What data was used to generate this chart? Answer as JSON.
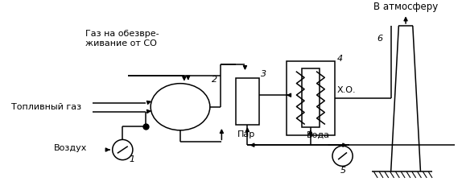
{
  "bg_color": "#ffffff",
  "line_color": "#000000",
  "labels": {
    "gaz_title": "Газ на обезвре-\nживание от СО",
    "fuel_gas": "Топливный газ",
    "air": "Воздух",
    "steam": "Пар",
    "water": "Вода",
    "xo": "Х.О.",
    "atmosphere": "В атмосферу",
    "num1": "1",
    "num2": "2",
    "num3": "3",
    "num4": "4",
    "num5": "5",
    "num6": "6"
  },
  "font_size": 8.0
}
